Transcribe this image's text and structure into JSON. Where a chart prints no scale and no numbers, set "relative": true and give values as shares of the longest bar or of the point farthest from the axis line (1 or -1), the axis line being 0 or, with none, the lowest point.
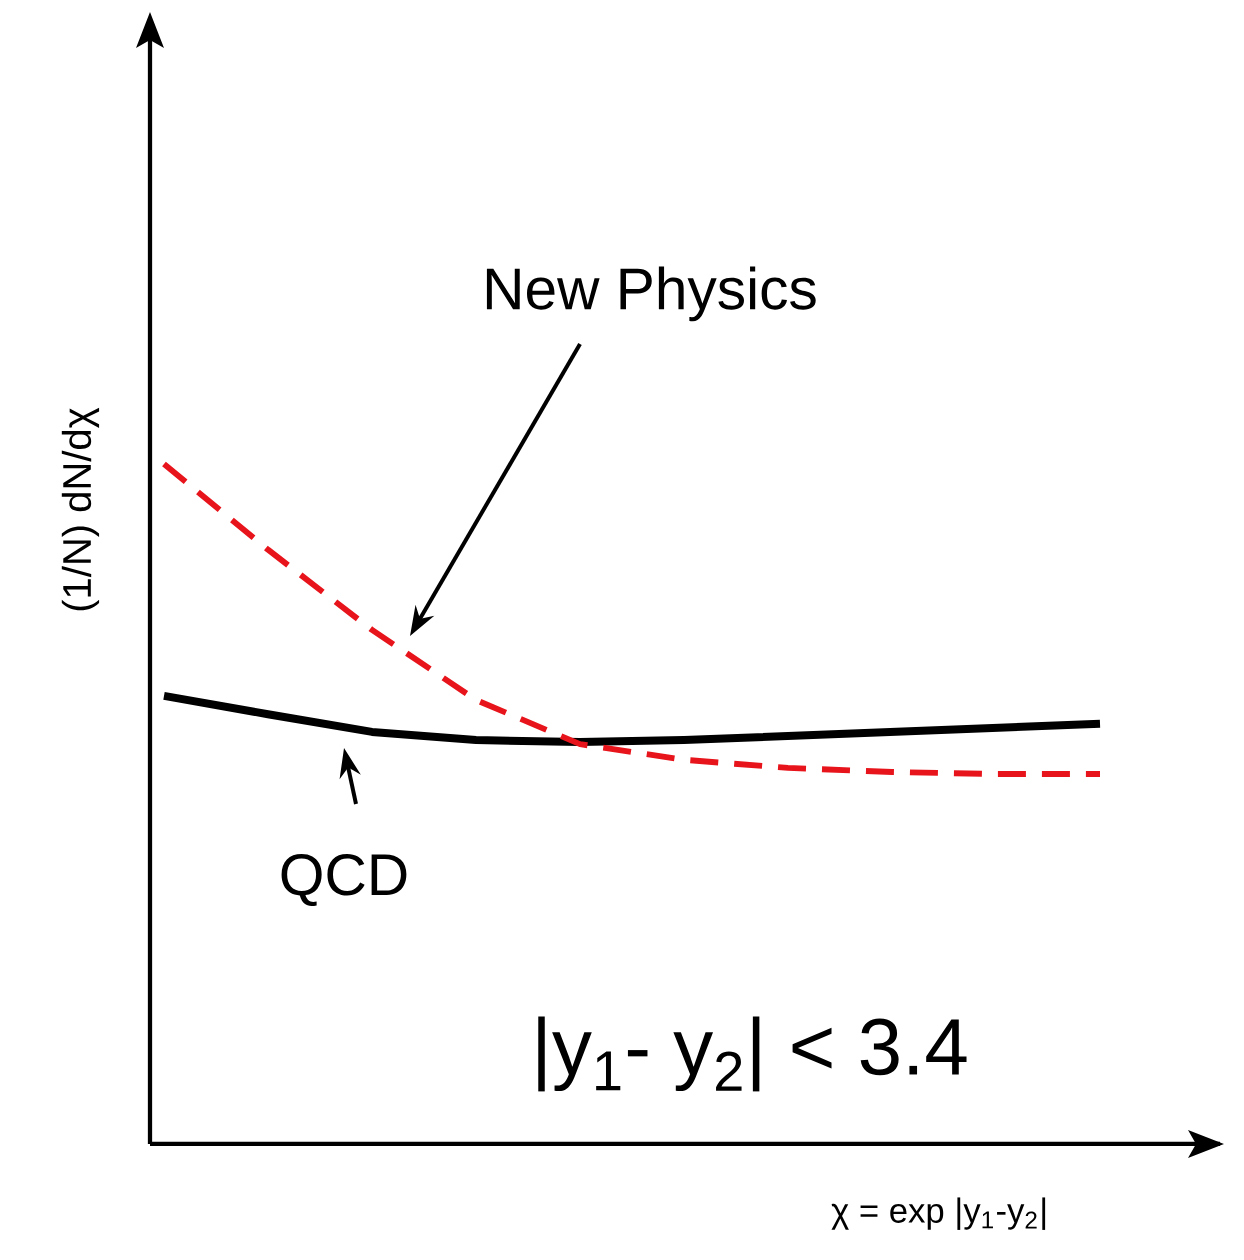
{
  "chart_data": {
    "type": "line",
    "relative": true,
    "xlabel": "χ = exp |y$_{1}$-y$_{2}$|",
    "ylabel": "(1/N) dN/dχ",
    "categories": [
      null,
      null,
      null,
      null,
      null,
      null,
      null,
      null,
      null,
      null
    ],
    "series": [
      {
        "name": "QCD",
        "color": "#000000",
        "line_style": "solid",
        "values": [
          0.659,
          0.632,
          0.606,
          0.594,
          0.591,
          0.594,
          0.6,
          0.606,
          0.612,
          0.618
        ]
      },
      {
        "name": "New Physics",
        "color": "#e8141b",
        "line_style": "dashed",
        "values": [
          1,
          0.874,
          0.756,
          0.653,
          0.588,
          0.565,
          0.553,
          0.547,
          0.544,
          0.544
        ]
      }
    ],
    "annotations": [
      "|y$_{1}$- y$_{2}$| < 3.4"
    ]
  }
}
